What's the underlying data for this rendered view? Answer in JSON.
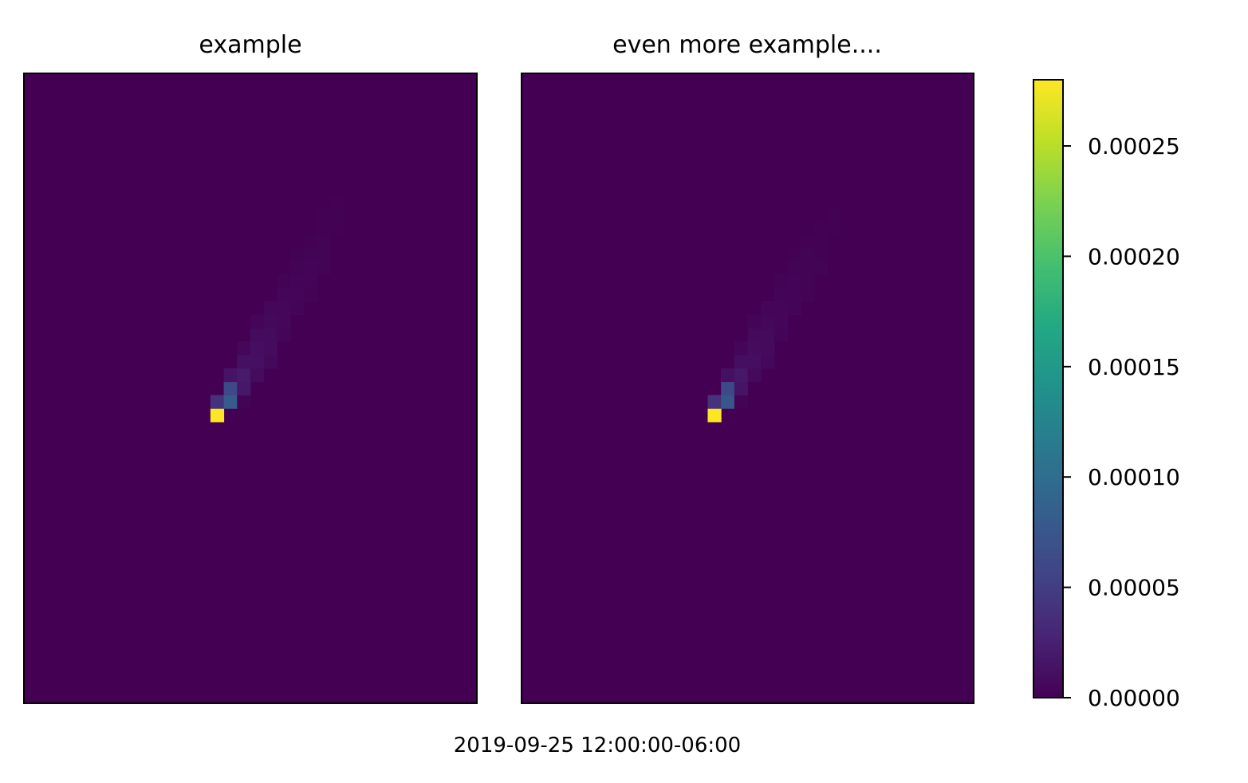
{
  "figure": {
    "footer": "2019-09-25 12:00:00-06:00"
  },
  "colormap": {
    "name": "viridis",
    "stops": [
      "#440154",
      "#482475",
      "#414487",
      "#355f8d",
      "#2a788e",
      "#21918c",
      "#22a884",
      "#44bf70",
      "#7ad151",
      "#bddf26",
      "#fde725"
    ]
  },
  "chart_data": [
    {
      "type": "heatmap",
      "title": "example",
      "grid": false,
      "rows": 47,
      "cols": 34,
      "background_value": 0,
      "cells": [
        [
          25,
          14,
          0.00028
        ],
        [
          24,
          14,
          4e-05
        ],
        [
          24,
          15,
          8e-05
        ],
        [
          24,
          16,
          2e-06
        ],
        [
          23,
          15,
          6e-05
        ],
        [
          23,
          16,
          1.8e-05
        ],
        [
          22,
          15,
          1.5e-05
        ],
        [
          22,
          16,
          2e-05
        ],
        [
          22,
          17,
          8e-06
        ],
        [
          21,
          16,
          1.2e-05
        ],
        [
          21,
          17,
          1.2e-05
        ],
        [
          21,
          18,
          6e-06
        ],
        [
          20,
          16,
          5e-06
        ],
        [
          20,
          17,
          1e-05
        ],
        [
          20,
          18,
          8e-06
        ],
        [
          19,
          17,
          8e-06
        ],
        [
          19,
          18,
          8e-06
        ],
        [
          19,
          19,
          4e-06
        ],
        [
          18,
          17,
          4e-06
        ],
        [
          18,
          18,
          6e-06
        ],
        [
          18,
          19,
          5e-06
        ],
        [
          17,
          18,
          5e-06
        ],
        [
          17,
          19,
          5e-06
        ],
        [
          17,
          20,
          3e-06
        ],
        [
          16,
          19,
          4e-06
        ],
        [
          16,
          20,
          4e-06
        ],
        [
          16,
          21,
          2e-06
        ],
        [
          15,
          19,
          2e-06
        ],
        [
          15,
          20,
          3e-06
        ],
        [
          15,
          21,
          3e-06
        ],
        [
          14,
          20,
          2e-06
        ],
        [
          14,
          21,
          3e-06
        ],
        [
          14,
          22,
          2e-06
        ],
        [
          13,
          20,
          1e-06
        ],
        [
          13,
          21,
          2e-06
        ],
        [
          13,
          22,
          2e-06
        ],
        [
          12,
          21,
          1e-06
        ],
        [
          12,
          22,
          2e-06
        ],
        [
          11,
          22,
          1e-06
        ],
        [
          11,
          23,
          1e-06
        ],
        [
          10,
          22,
          1e-06
        ],
        [
          10,
          23,
          1e-06
        ],
        [
          9,
          23,
          1e-06
        ]
      ]
    },
    {
      "type": "heatmap",
      "title": "even more example....",
      "grid": false,
      "rows": 47,
      "cols": 34,
      "background_value": 0,
      "cells": [
        [
          25,
          14,
          0.00028
        ],
        [
          24,
          14,
          4e-05
        ],
        [
          24,
          15,
          7.5e-05
        ],
        [
          24,
          16,
          2e-06
        ],
        [
          23,
          15,
          6e-05
        ],
        [
          23,
          16,
          1.5e-05
        ],
        [
          22,
          15,
          1.2e-05
        ],
        [
          22,
          16,
          1.8e-05
        ],
        [
          22,
          17,
          7e-06
        ],
        [
          21,
          16,
          1e-05
        ],
        [
          21,
          17,
          1e-05
        ],
        [
          21,
          18,
          5e-06
        ],
        [
          20,
          16,
          4e-06
        ],
        [
          20,
          17,
          8e-06
        ],
        [
          20,
          18,
          7e-06
        ],
        [
          19,
          17,
          7e-06
        ],
        [
          19,
          18,
          7e-06
        ],
        [
          19,
          19,
          3e-06
        ],
        [
          18,
          17,
          3e-06
        ],
        [
          18,
          18,
          5e-06
        ],
        [
          18,
          19,
          4e-06
        ],
        [
          17,
          18,
          4e-06
        ],
        [
          17,
          19,
          4e-06
        ],
        [
          17,
          20,
          3e-06
        ],
        [
          16,
          19,
          3e-06
        ],
        [
          16,
          20,
          3e-06
        ],
        [
          16,
          21,
          2e-06
        ],
        [
          15,
          19,
          2e-06
        ],
        [
          15,
          20,
          3e-06
        ],
        [
          15,
          21,
          2e-06
        ],
        [
          14,
          20,
          2e-06
        ],
        [
          14,
          21,
          2e-06
        ],
        [
          14,
          22,
          2e-06
        ],
        [
          13,
          20,
          1e-06
        ],
        [
          13,
          21,
          2e-06
        ],
        [
          13,
          22,
          1e-06
        ],
        [
          12,
          21,
          1e-06
        ],
        [
          12,
          22,
          1e-06
        ],
        [
          11,
          22,
          1e-06
        ],
        [
          11,
          23,
          1e-06
        ],
        [
          10,
          23,
          1e-06
        ]
      ]
    }
  ],
  "colorbar": {
    "vmin": 0,
    "vmax": 0.00028,
    "ticks": [
      0.0,
      5e-05,
      0.0001,
      0.00015,
      0.0002,
      0.00025
    ],
    "tick_labels": [
      "0.00000",
      "0.00005",
      "0.00010",
      "0.00015",
      "0.00020",
      "0.00025"
    ]
  }
}
